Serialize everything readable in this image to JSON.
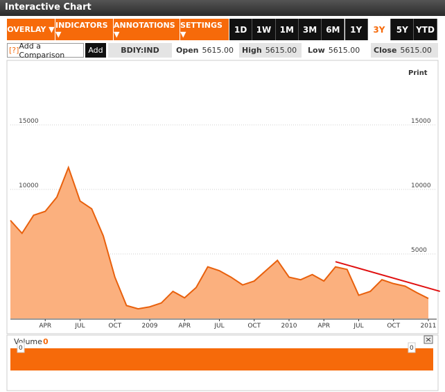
{
  "header": {
    "title": "Interactive Chart"
  },
  "toolbar": {
    "menus": [
      "OVERLAY ▼",
      "INDICATORS ▼",
      "ANNOTATIONS ▼",
      "SETTINGS ▼"
    ],
    "periods": [
      "1D",
      "1W",
      "1M",
      "3M",
      "6M",
      "1Y",
      "3Y",
      "5Y",
      "YTD"
    ],
    "selected_period_index": 6
  },
  "comparison": {
    "help": "[?]",
    "placeholder": "Add a Comparison",
    "button": "Add"
  },
  "quote": {
    "ticker": "BDIY:IND",
    "fields": [
      {
        "label": "Open",
        "value": "5615.00",
        "shaded": false
      },
      {
        "label": "High",
        "value": "5615.00",
        "shaded": true
      },
      {
        "label": "Low",
        "value": "5615.00",
        "shaded": false
      },
      {
        "label": "Close",
        "value": "5615.00",
        "shaded": true
      }
    ]
  },
  "print": "Print",
  "chart_data": {
    "type": "area",
    "categories": [
      null,
      null,
      null,
      "APR",
      null,
      null,
      "JUL",
      null,
      null,
      "OCT",
      null,
      null,
      "2009",
      null,
      null,
      "APR",
      null,
      null,
      "JUL",
      null,
      null,
      "OCT",
      null,
      null,
      "2010",
      null,
      null,
      "APR",
      null,
      null,
      "JUL",
      null,
      null,
      "OCT",
      null,
      null,
      "2011"
    ],
    "series": [
      {
        "name": "BDIY:IND",
        "color": "#e8600c",
        "fill": "#fbb07e",
        "values": [
          7600,
          6600,
          8000,
          8300,
          9400,
          11700,
          9100,
          8500,
          6400,
          3200,
          1000,
          750,
          900,
          1200,
          2100,
          1600,
          2400,
          4000,
          3700,
          3200,
          2600,
          2900,
          3700,
          4500,
          3200,
          3000,
          3400,
          2900,
          4000,
          3800,
          1800,
          2100,
          3000,
          2700,
          2500,
          2000,
          1550
        ]
      }
    ],
    "ylim": [
      0,
      20000
    ],
    "yticks": [
      5000,
      10000,
      15000
    ],
    "grid": true,
    "trendline": {
      "start": [
        28,
        4400
      ],
      "end": [
        37,
        2100
      ],
      "color": "#e01010"
    }
  },
  "volume": {
    "label": "Volume",
    "current": 0,
    "scale_labels": [
      0,
      0
    ],
    "color": "#f66a0a"
  }
}
